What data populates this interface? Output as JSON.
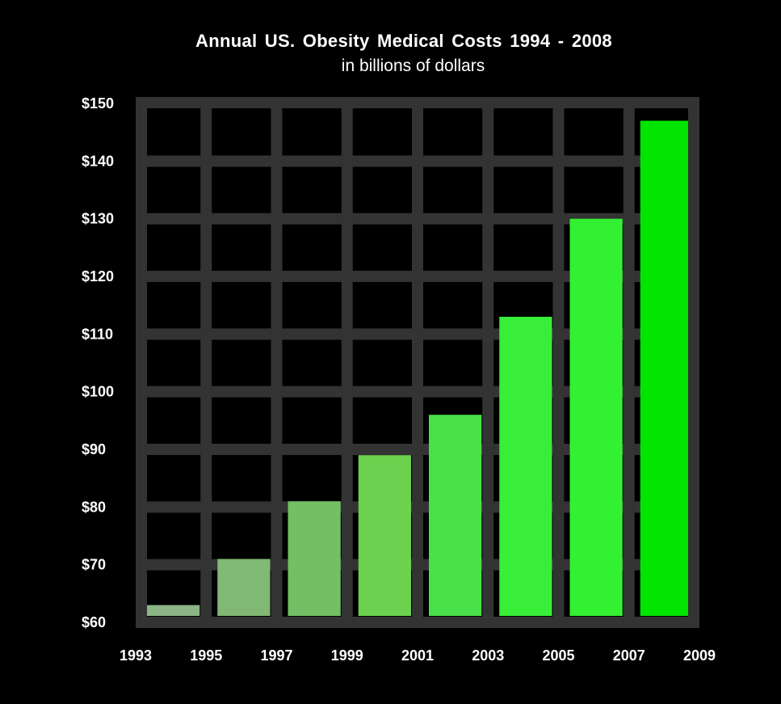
{
  "chart_data": {
    "type": "bar",
    "title": "Annual US. Obesity Medical Costs 1994 - 2008",
    "subtitle": "in billions of dollars",
    "x_ticks": [
      "1993",
      "1995",
      "1997",
      "1999",
      "2001",
      "2003",
      "2005",
      "2007",
      "2009"
    ],
    "categories": [
      "1994",
      "1996",
      "1998",
      "2000",
      "2002",
      "2004",
      "2006",
      "2008"
    ],
    "values": [
      63,
      71,
      81,
      89,
      96,
      113,
      130,
      147
    ],
    "y_ticks": [
      "$60",
      "$70",
      "$80",
      "$90",
      "$100",
      "$110",
      "$120",
      "$130",
      "$140",
      "$150"
    ],
    "ylim": [
      60,
      150
    ],
    "grid": true,
    "colors": {
      "background": "#000000",
      "grid": "#333333",
      "bars": [
        "#8cb487",
        "#80b874",
        "#74bf63",
        "#6cd14e",
        "#4ae04a",
        "#38ee38",
        "#33f033",
        "#00e400"
      ]
    }
  }
}
